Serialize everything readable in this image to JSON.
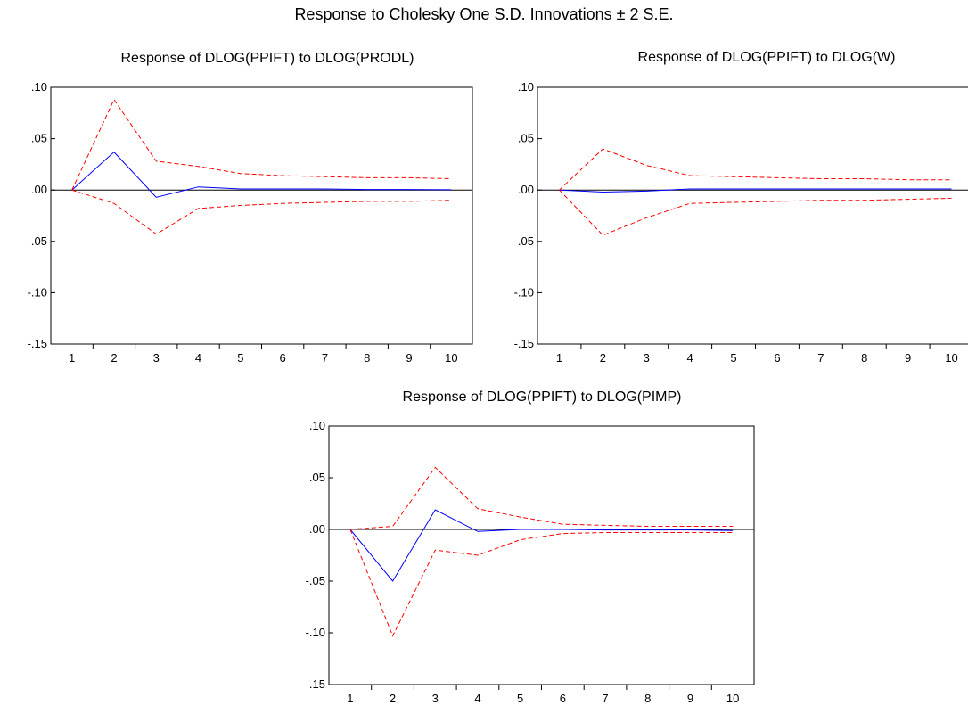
{
  "title": "Response to Cholesky One S.D. Innovations ± 2 S.E.",
  "colors": {
    "response": "#0000ff",
    "band": "#ff0000",
    "axis": "#000000"
  },
  "chart_data": [
    {
      "type": "line",
      "title": "Response of DLOG(PPIFT) to DLOG(PRODL)",
      "x": [
        1,
        2,
        3,
        4,
        5,
        6,
        7,
        8,
        9,
        10
      ],
      "x_tick_labels": [
        "1",
        "2",
        "3",
        "4",
        "5",
        "6",
        "7",
        "8",
        "9",
        "10"
      ],
      "ylim": [
        -0.15,
        0.1
      ],
      "y_ticks": [
        0.1,
        0.05,
        0.0,
        -0.05,
        -0.1,
        -0.15
      ],
      "y_tick_labels": [
        ".10",
        ".05",
        ".00",
        "-.05",
        "-.10",
        "-.15"
      ],
      "series": [
        {
          "role": "response",
          "style": "solid",
          "values": [
            0.0,
            0.037,
            -0.007,
            0.003,
            0.001,
            0.001,
            0.001,
            0.0005,
            0.0005,
            0.0003
          ]
        },
        {
          "role": "upper-band",
          "style": "dashed",
          "values": [
            0.0,
            0.088,
            0.028,
            0.023,
            0.016,
            0.014,
            0.013,
            0.012,
            0.012,
            0.011
          ]
        },
        {
          "role": "lower-band",
          "style": "dashed",
          "values": [
            0.0,
            -0.013,
            -0.043,
            -0.018,
            -0.015,
            -0.013,
            -0.012,
            -0.011,
            -0.011,
            -0.01
          ]
        }
      ]
    },
    {
      "type": "line",
      "title": "Response of DLOG(PPIFT) to DLOG(W)",
      "x": [
        1,
        2,
        3,
        4,
        5,
        6,
        7,
        8,
        9,
        10
      ],
      "x_tick_labels": [
        "1",
        "2",
        "3",
        "4",
        "5",
        "6",
        "7",
        "8",
        "9",
        "10"
      ],
      "ylim": [
        -0.15,
        0.1
      ],
      "y_ticks": [
        0.1,
        0.05,
        0.0,
        -0.05,
        -0.1,
        -0.15
      ],
      "y_tick_labels": [
        ".10",
        ".05",
        ".00",
        "-.05",
        "-.10",
        "-.15"
      ],
      "series": [
        {
          "role": "response",
          "style": "solid",
          "values": [
            0.0,
            -0.002,
            -0.001,
            0.001,
            0.001,
            0.001,
            0.001,
            0.001,
            0.001,
            0.001
          ]
        },
        {
          "role": "upper-band",
          "style": "dashed",
          "values": [
            0.0,
            0.04,
            0.024,
            0.014,
            0.013,
            0.012,
            0.011,
            0.011,
            0.01,
            0.01
          ]
        },
        {
          "role": "lower-band",
          "style": "dashed",
          "values": [
            0.0,
            -0.044,
            -0.027,
            -0.013,
            -0.012,
            -0.011,
            -0.01,
            -0.01,
            -0.009,
            -0.008
          ]
        }
      ]
    },
    {
      "type": "line",
      "title": "Response of DLOG(PPIFT) to DLOG(PIMP)",
      "x": [
        1,
        2,
        3,
        4,
        5,
        6,
        7,
        8,
        9,
        10
      ],
      "x_tick_labels": [
        "1",
        "2",
        "3",
        "4",
        "5",
        "6",
        "7",
        "8",
        "9",
        "10"
      ],
      "ylim": [
        -0.15,
        0.1
      ],
      "y_ticks": [
        0.1,
        0.05,
        0.0,
        -0.05,
        -0.1,
        -0.15
      ],
      "y_tick_labels": [
        ".10",
        ".05",
        ".00",
        "-.05",
        "-.10",
        "-.15"
      ],
      "series": [
        {
          "role": "response",
          "style": "solid",
          "values": [
            0.0,
            -0.05,
            0.019,
            -0.002,
            0.0,
            0.0,
            -0.0005,
            -0.0005,
            -0.0005,
            -0.001
          ]
        },
        {
          "role": "upper-band",
          "style": "dashed",
          "values": [
            0.0,
            0.003,
            0.06,
            0.02,
            0.012,
            0.005,
            0.004,
            0.003,
            0.003,
            0.003
          ]
        },
        {
          "role": "lower-band",
          "style": "dashed",
          "values": [
            0.0,
            -0.103,
            -0.02,
            -0.025,
            -0.01,
            -0.004,
            -0.003,
            -0.003,
            -0.003,
            -0.003
          ]
        }
      ]
    }
  ]
}
